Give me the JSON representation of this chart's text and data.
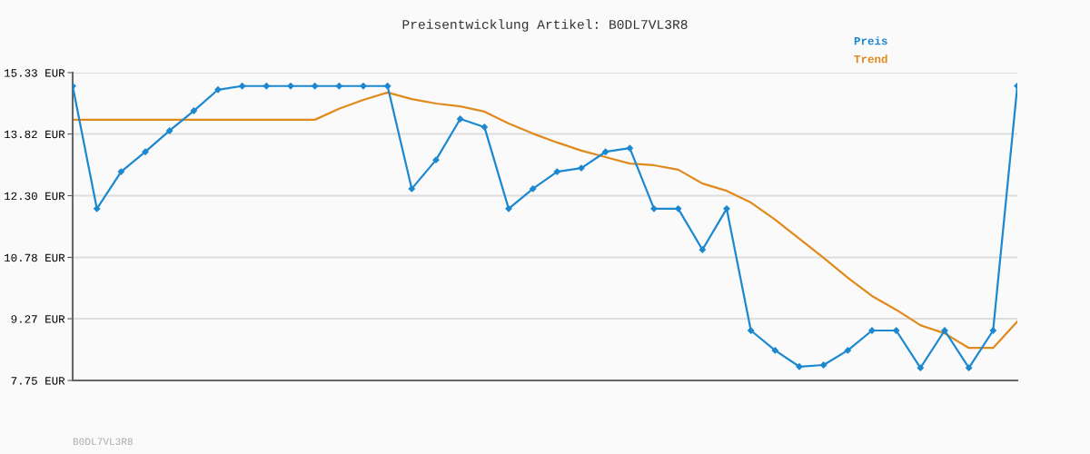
{
  "chart_data": {
    "type": "line",
    "title": "Preisentwicklung Artikel: B0DL7VL3R8",
    "categories": [
      null,
      null,
      null,
      null,
      null,
      null,
      null,
      null,
      null,
      null,
      null,
      null,
      null,
      null,
      null,
      null,
      null,
      null,
      null,
      null,
      null,
      null,
      null,
      null,
      null,
      null,
      null,
      null,
      null,
      null,
      null,
      null,
      null,
      null,
      null,
      null,
      null,
      null,
      null,
      null
    ],
    "series": [
      {
        "name": "Preis",
        "color": "#1c88d0",
        "marker": "diamond",
        "values": [
          15.0,
          11.98,
          12.89,
          13.38,
          13.9,
          14.39,
          14.91,
          15.0,
          15.0,
          15.0,
          15.0,
          15.0,
          15.0,
          15.0,
          12.47,
          13.18,
          14.19,
          13.99,
          11.98,
          12.47,
          12.89,
          12.98,
          13.38,
          13.47,
          11.98,
          11.98,
          10.97,
          11.98,
          8.98,
          8.49,
          8.09,
          8.13,
          8.49,
          8.98,
          8.98,
          8.06,
          8.98,
          8.06,
          8.98,
          15.0
        ]
      },
      {
        "name": "Trend",
        "color": "#e08a1e",
        "marker": "none",
        "values": [
          14.17,
          14.17,
          14.17,
          14.17,
          14.17,
          14.17,
          14.17,
          14.17,
          14.17,
          14.17,
          14.17,
          14.44,
          14.66,
          14.84,
          14.68,
          14.57,
          14.5,
          14.37,
          14.08,
          13.83,
          13.61,
          13.41,
          13.25,
          13.09,
          13.05,
          12.94,
          12.6,
          12.42,
          12.13,
          11.71,
          11.24,
          10.77,
          10.28,
          9.83,
          9.49,
          9.11,
          8.91,
          8.55,
          8.55,
          9.2
        ]
      }
    ],
    "ylim": [
      7.75,
      15.33
    ],
    "yticks": [
      {
        "value": 7.75,
        "label": "7.75 EUR"
      },
      {
        "value": 9.27,
        "label": "9.27 EUR"
      },
      {
        "value": 10.78,
        "label": "10.78 EUR"
      },
      {
        "value": 12.3,
        "label": "12.30 EUR"
      },
      {
        "value": 13.82,
        "label": "13.82 EUR"
      },
      {
        "value": 15.33,
        "label": "15.33 EUR"
      }
    ],
    "grid": "y",
    "legend": "top right",
    "line_style": "solid",
    "annotations": [
      "B0DL7VL3R8"
    ]
  }
}
